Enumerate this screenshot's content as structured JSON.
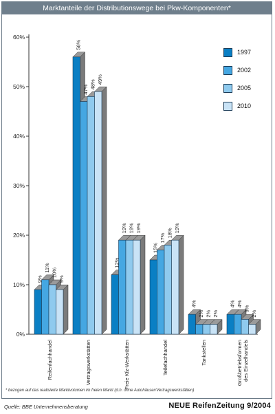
{
  "title": "Marktanteile der Distributionswege bei Pkw-Komponenten*",
  "footnote": "* bezogen auf das realisierte Marktvolumen im freien Markt (d.h. ohne Autohäuser/Vertragswerkstätten)",
  "source": "Quelle: BBE Unternehmensberatung",
  "publisher": "NEUE ReifenZeitung 9/2004",
  "chart_data": {
    "type": "bar",
    "title": "Marktanteile der Distributionswege bei Pkw-Komponenten*",
    "xlabel": "",
    "ylabel": "",
    "ylim": [
      0,
      60
    ],
    "yticks": [
      "0%",
      "10%",
      "20%",
      "30%",
      "40%",
      "50%",
      "60%"
    ],
    "grid": false,
    "legend": "right",
    "categories": [
      "Reifenfachhandel",
      "Vertragswerkstätten",
      "Freie Kfz-Werkstätten",
      "Teilefachhandel",
      "Tankstellen",
      "Großbetriebsformen des Einzelhandels"
    ],
    "series": [
      {
        "name": "1997",
        "color": "#0a7fc4",
        "values": [
          9,
          56,
          12,
          15,
          4,
          4
        ]
      },
      {
        "name": "2002",
        "color": "#45a7e2",
        "values": [
          11,
          47,
          19,
          17,
          2,
          4
        ]
      },
      {
        "name": "2005",
        "color": "#8fcaee",
        "values": [
          10,
          48,
          19,
          18,
          2,
          3
        ]
      },
      {
        "name": "2010",
        "color": "#c9e3f6",
        "values": [
          9,
          49,
          19,
          19,
          2,
          2
        ]
      }
    ]
  }
}
